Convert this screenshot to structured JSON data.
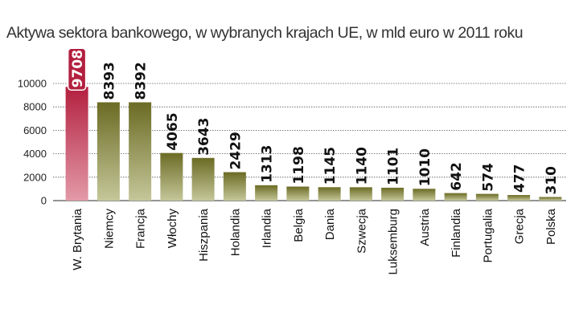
{
  "chart_data": {
    "type": "bar",
    "title": "Aktywa sektora bankowego, w wybranych krajach UE, w mld euro w 2011 roku",
    "xlabel": "",
    "ylabel": "",
    "ylim": [
      0,
      10000
    ],
    "yticks": [
      0,
      2000,
      4000,
      6000,
      8000,
      10000
    ],
    "grid": true,
    "categories": [
      "W. Brytania",
      "Niemcy",
      "Francja",
      "Włochy",
      "Hiszpania",
      "Holandia",
      "Irlandia",
      "Belgia",
      "Dania",
      "Szwecja",
      "Luksemburg",
      "Austria",
      "Finlandia",
      "Portugalia",
      "Grecja",
      "Polska"
    ],
    "values": [
      9708,
      8393,
      8392,
      4065,
      3643,
      2429,
      1313,
      1198,
      1145,
      1140,
      1101,
      1010,
      642,
      574,
      477,
      310
    ],
    "highlight_index": 0,
    "colors": {
      "bar_dark": "#6b6b24",
      "bar_light": "#c5c79a",
      "highlight_dark": "#b3203f",
      "highlight_light": "#e39aa8"
    }
  }
}
